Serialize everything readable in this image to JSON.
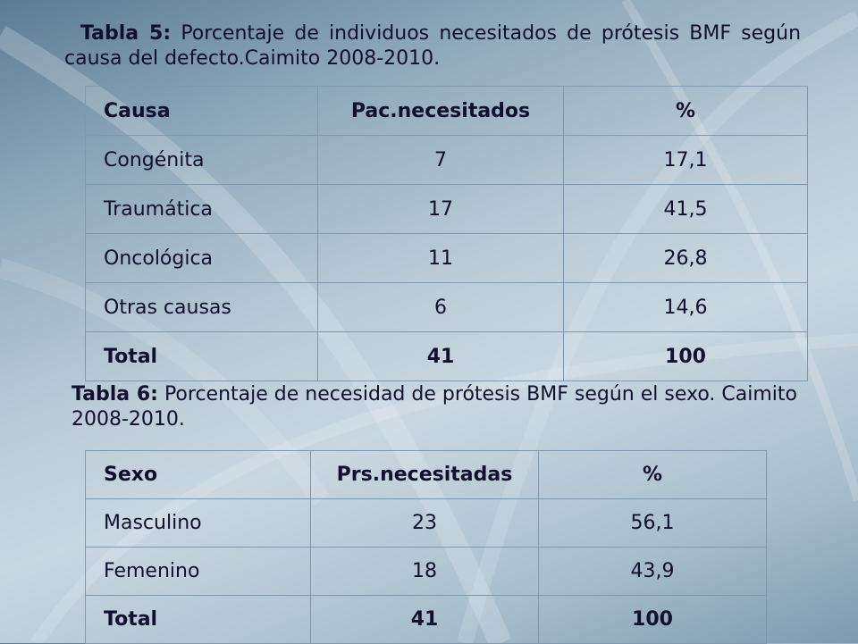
{
  "table5": {
    "caption_label": "Tabla 5:",
    "caption_text": "Porcentaje de individuos necesitados de prótesis BMF según causa del defecto.Caimito 2008-2010.",
    "headers": [
      "Causa",
      "Pac.necesitados",
      "%"
    ],
    "rows": [
      [
        "Congénita",
        "7",
        "17,1"
      ],
      [
        "Traumática",
        "17",
        "41,5"
      ],
      [
        "Oncológica",
        "11",
        "26,8"
      ],
      [
        "Otras causas",
        "6",
        "14,6"
      ]
    ],
    "total": [
      "Total",
      "41",
      "100"
    ]
  },
  "table6": {
    "caption_label": "Tabla 6:",
    "caption_text": "Porcentaje de necesidad de prótesis BMF según el sexo. Caimito 2008-2010.",
    "headers": [
      "Sexo",
      "Prs.necesitadas",
      "%"
    ],
    "rows": [
      [
        "Masculino",
        "23",
        "56,1"
      ],
      [
        "Femenino",
        "18",
        "43,9"
      ]
    ],
    "total": [
      "Total",
      "41",
      "100"
    ]
  }
}
